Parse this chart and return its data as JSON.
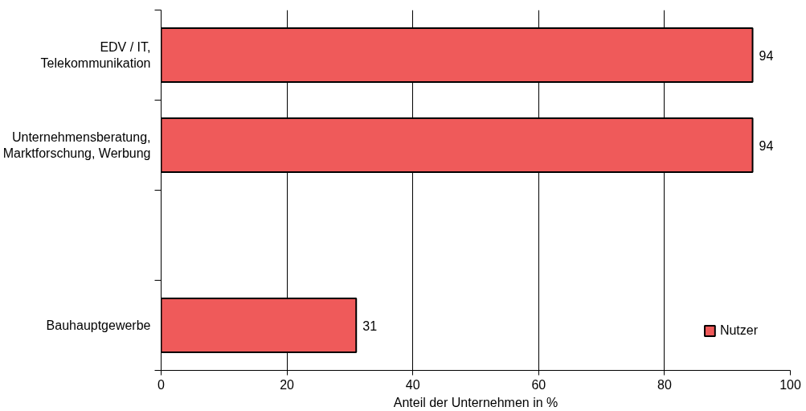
{
  "chart_data": {
    "type": "bar",
    "orientation": "horizontal",
    "xlabel": "Anteil der Unternehmen in %",
    "categories": [
      "EDV / IT,\nTelekommunikation",
      "Unternehmensberatung,\nMarktforschung, Werbung",
      null,
      "Bauhauptgewerbe"
    ],
    "series": [
      {
        "name": "Nutzer",
        "color": "#ef5a5a",
        "values": [
          94,
          94,
          null,
          31
        ]
      }
    ],
    "xlim": [
      0,
      100
    ],
    "xticks": [
      0,
      20,
      40,
      60,
      80,
      100
    ],
    "grid": "x",
    "legend": "bottom right",
    "data_labels": true
  }
}
